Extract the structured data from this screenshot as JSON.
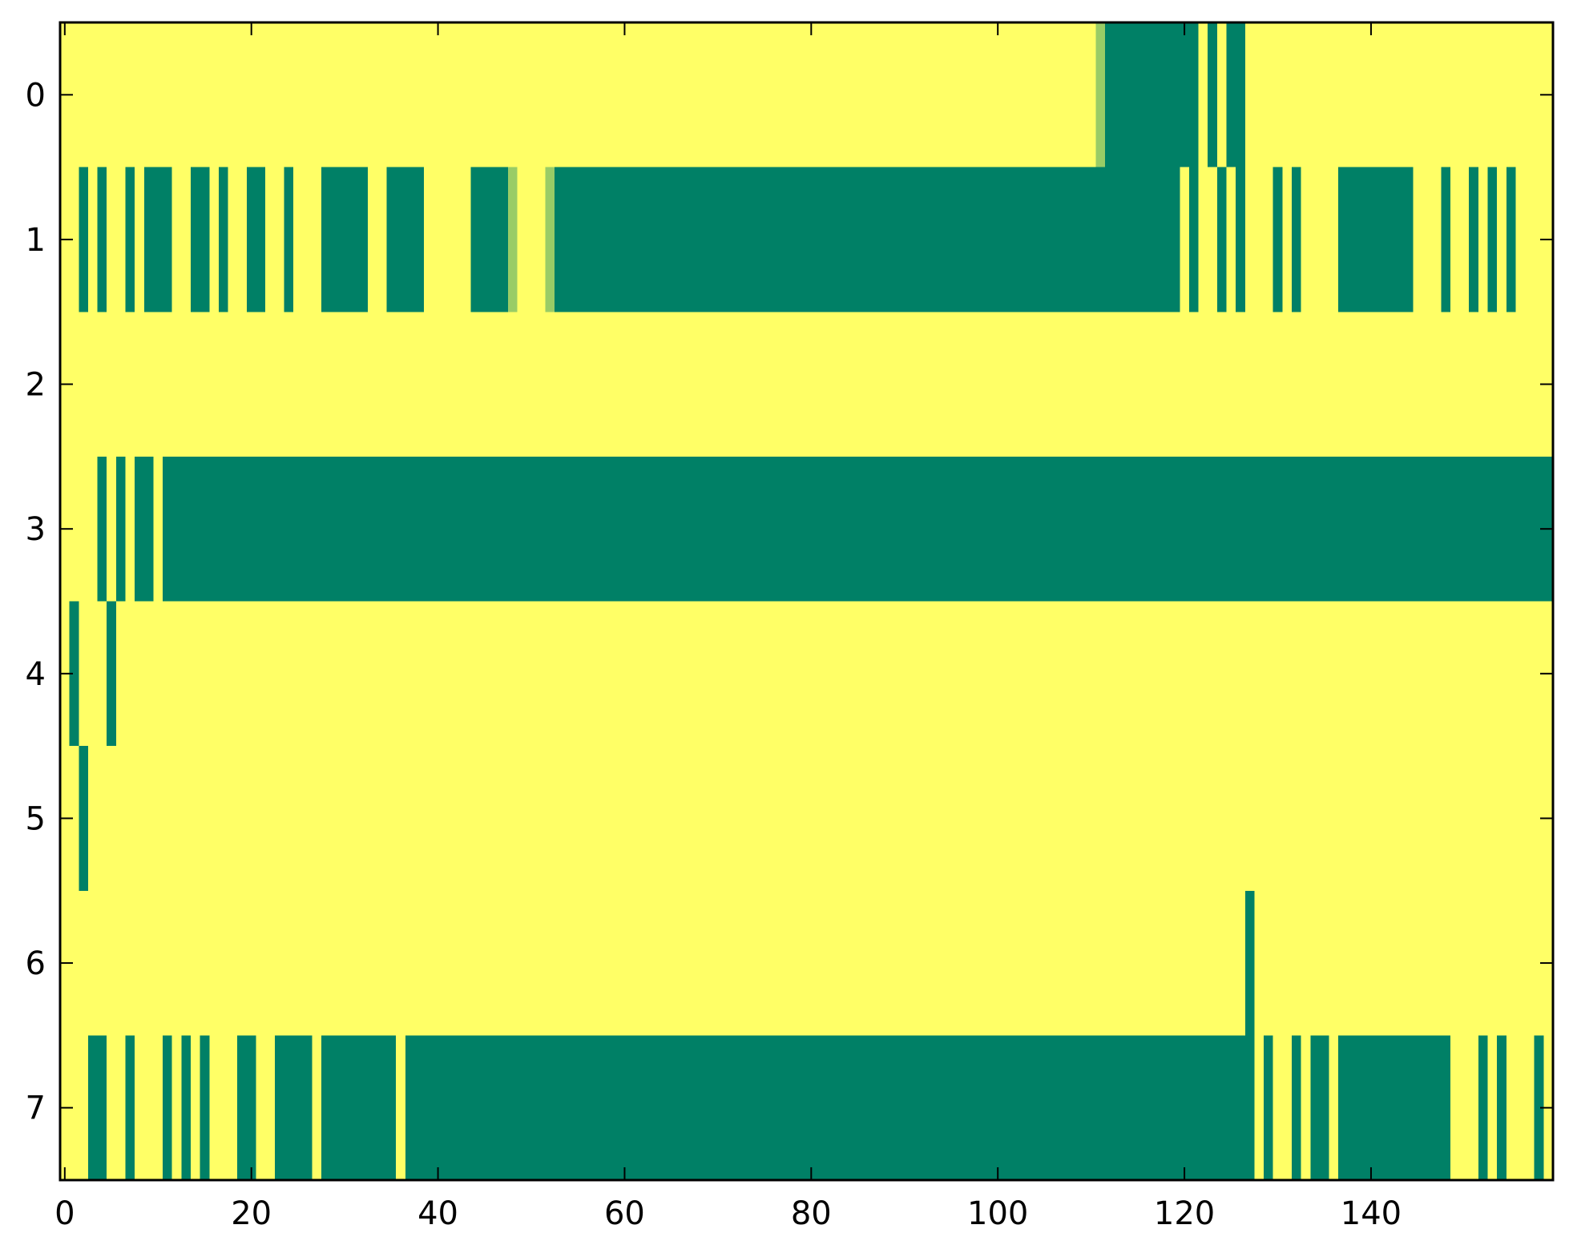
{
  "chart_data": {
    "type": "heatmap",
    "title": "",
    "xlabel": "",
    "ylabel": "",
    "xlim": [
      -0.5,
      159.5
    ],
    "ylim": [
      -0.5,
      7.5
    ],
    "x_ticks": [
      0,
      20,
      40,
      60,
      80,
      100,
      120,
      140
    ],
    "y_ticks": [
      0,
      1,
      2,
      3,
      4,
      5,
      6,
      7
    ],
    "x_tick_labels": [
      "0",
      "20",
      "40",
      "60",
      "80",
      "100",
      "120",
      "140"
    ],
    "y_tick_labels": [
      "0",
      "1",
      "2",
      "3",
      "4",
      "5",
      "6",
      "7"
    ],
    "grid": false,
    "colors": {
      "background": "#ffff66",
      "value_0": "#ffff66",
      "value_0_5": "#99cc66",
      "value_1": "#008066"
    },
    "n_rows": 8,
    "n_cols": 160,
    "row_runs": [
      {
        "row": 0,
        "runs": [
          [
            111,
            111,
            0.5
          ],
          [
            112,
            121,
            1
          ],
          [
            123,
            123,
            1
          ],
          [
            125,
            126,
            1
          ]
        ]
      },
      {
        "row": 1,
        "runs": [
          [
            2,
            2,
            1
          ],
          [
            4,
            4,
            1
          ],
          [
            7,
            7,
            1
          ],
          [
            9,
            11,
            1
          ],
          [
            14,
            15,
            1
          ],
          [
            17,
            17,
            1
          ],
          [
            20,
            21,
            1
          ],
          [
            24,
            24,
            1
          ],
          [
            28,
            32,
            1
          ],
          [
            35,
            38,
            1
          ],
          [
            44,
            47,
            1
          ],
          [
            48,
            48,
            0.5
          ],
          [
            52,
            52,
            0.5
          ],
          [
            53,
            119,
            1
          ],
          [
            121,
            121,
            1
          ],
          [
            124,
            124,
            1
          ],
          [
            126,
            126,
            1
          ],
          [
            130,
            130,
            1
          ],
          [
            132,
            132,
            1
          ],
          [
            137,
            141,
            1
          ],
          [
            142,
            144,
            1
          ],
          [
            148,
            148,
            1
          ],
          [
            151,
            151,
            1
          ],
          [
            153,
            153,
            1
          ],
          [
            155,
            155,
            1
          ]
        ]
      },
      {
        "row": 2,
        "runs": []
      },
      {
        "row": 3,
        "runs": [
          [
            4,
            4,
            1
          ],
          [
            6,
            6,
            1
          ],
          [
            8,
            9,
            1
          ],
          [
            11,
            159,
            1
          ]
        ]
      },
      {
        "row": 4,
        "runs": [
          [
            1,
            1,
            1
          ],
          [
            5,
            5,
            1
          ]
        ]
      },
      {
        "row": 5,
        "runs": [
          [
            2,
            2,
            1
          ]
        ]
      },
      {
        "row": 6,
        "runs": [
          [
            127,
            127,
            1
          ]
        ]
      },
      {
        "row": 7,
        "runs": [
          [
            3,
            4,
            1
          ],
          [
            7,
            7,
            1
          ],
          [
            11,
            11,
            1
          ],
          [
            13,
            13,
            1
          ],
          [
            15,
            15,
            1
          ],
          [
            19,
            20,
            1
          ],
          [
            23,
            26,
            1
          ],
          [
            28,
            35,
            1
          ],
          [
            37,
            127,
            1
          ],
          [
            129,
            129,
            1
          ],
          [
            132,
            132,
            1
          ],
          [
            134,
            135,
            1
          ],
          [
            137,
            148,
            1
          ],
          [
            152,
            152,
            1
          ],
          [
            154,
            154,
            1
          ],
          [
            158,
            158,
            1
          ]
        ]
      }
    ]
  }
}
